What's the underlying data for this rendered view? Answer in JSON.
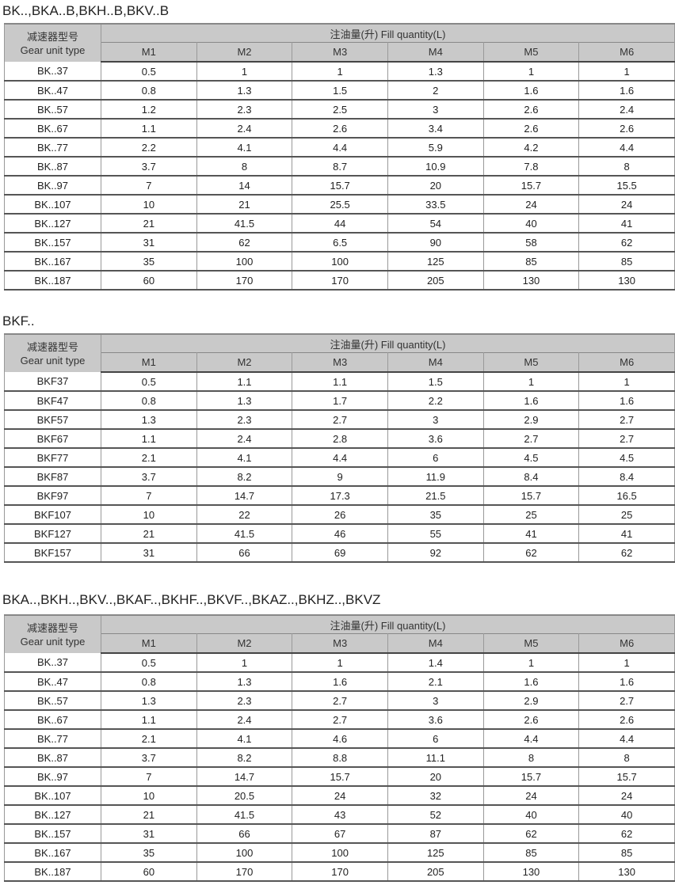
{
  "header": {
    "type_cn": "减速器型号",
    "type_en": "Gear unit type",
    "fill_label": "注油量(升) Fill quantity(L)",
    "positions": [
      "M1",
      "M2",
      "M3",
      "M4",
      "M5",
      "M6"
    ]
  },
  "tables": [
    {
      "title": "BK..,BKA..B,BKH..B,BKV..B",
      "rows": [
        [
          "BK..37",
          "0.5",
          "1",
          "1",
          "1.3",
          "1",
          "1"
        ],
        [
          "BK..47",
          "0.8",
          "1.3",
          "1.5",
          "2",
          "1.6",
          "1.6"
        ],
        [
          "BK..57",
          "1.2",
          "2.3",
          "2.5",
          "3",
          "2.6",
          "2.4"
        ],
        [
          "BK..67",
          "1.1",
          "2.4",
          "2.6",
          "3.4",
          "2.6",
          "2.6"
        ],
        [
          "BK..77",
          "2.2",
          "4.1",
          "4.4",
          "5.9",
          "4.2",
          "4.4"
        ],
        [
          "BK..87",
          "3.7",
          "8",
          "8.7",
          "10.9",
          "7.8",
          "8"
        ],
        [
          "BK..97",
          "7",
          "14",
          "15.7",
          "20",
          "15.7",
          "15.5"
        ],
        [
          "BK..107",
          "10",
          "21",
          "25.5",
          "33.5",
          "24",
          "24"
        ],
        [
          "BK..127",
          "21",
          "41.5",
          "44",
          "54",
          "40",
          "41"
        ],
        [
          "BK..157",
          "31",
          "62",
          "6.5",
          "90",
          "58",
          "62"
        ],
        [
          "BK..167",
          "35",
          "100",
          "100",
          "125",
          "85",
          "85"
        ],
        [
          "BK..187",
          "60",
          "170",
          "170",
          "205",
          "130",
          "130"
        ]
      ]
    },
    {
      "title": "BKF..",
      "rows": [
        [
          "BKF37",
          "0.5",
          "1.1",
          "1.1",
          "1.5",
          "1",
          "1"
        ],
        [
          "BKF47",
          "0.8",
          "1.3",
          "1.7",
          "2.2",
          "1.6",
          "1.6"
        ],
        [
          "BKF57",
          "1.3",
          "2.3",
          "2.7",
          "3",
          "2.9",
          "2.7"
        ],
        [
          "BKF67",
          "1.1",
          "2.4",
          "2.8",
          "3.6",
          "2.7",
          "2.7"
        ],
        [
          "BKF77",
          "2.1",
          "4.1",
          "4.4",
          "6",
          "4.5",
          "4.5"
        ],
        [
          "BKF87",
          "3.7",
          "8.2",
          "9",
          "11.9",
          "8.4",
          "8.4"
        ],
        [
          "BKF97",
          "7",
          "14.7",
          "17.3",
          "21.5",
          "15.7",
          "16.5"
        ],
        [
          "BKF107",
          "10",
          "22",
          "26",
          "35",
          "25",
          "25"
        ],
        [
          "BKF127",
          "21",
          "41.5",
          "46",
          "55",
          "41",
          "41"
        ],
        [
          "BKF157",
          "31",
          "66",
          "69",
          "92",
          "62",
          "62"
        ]
      ]
    },
    {
      "title": "BKA..,BKH..,BKV..,BKAF..,BKHF..,BKVF..,BKAZ..,BKHZ..,BKVZ",
      "rows": [
        [
          "BK..37",
          "0.5",
          "1",
          "1",
          "1.4",
          "1",
          "1"
        ],
        [
          "BK..47",
          "0.8",
          "1.3",
          "1.6",
          "2.1",
          "1.6",
          "1.6"
        ],
        [
          "BK..57",
          "1.3",
          "2.3",
          "2.7",
          "3",
          "2.9",
          "2.7"
        ],
        [
          "BK..67",
          "1.1",
          "2.4",
          "2.7",
          "3.6",
          "2.6",
          "2.6"
        ],
        [
          "BK..77",
          "2.1",
          "4.1",
          "4.6",
          "6",
          "4.4",
          "4.4"
        ],
        [
          "BK..87",
          "3.7",
          "8.2",
          "8.8",
          "11.1",
          "8",
          "8"
        ],
        [
          "BK..97",
          "7",
          "14.7",
          "15.7",
          "20",
          "15.7",
          "15.7"
        ],
        [
          "BK..107",
          "10",
          "20.5",
          "24",
          "32",
          "24",
          "24"
        ],
        [
          "BK..127",
          "21",
          "41.5",
          "43",
          "52",
          "40",
          "40"
        ],
        [
          "BK..157",
          "31",
          "66",
          "67",
          "87",
          "62",
          "62"
        ],
        [
          "BK..167",
          "35",
          "100",
          "100",
          "125",
          "85",
          "85"
        ],
        [
          "BK..187",
          "60",
          "170",
          "170",
          "205",
          "130",
          "130"
        ]
      ]
    }
  ]
}
